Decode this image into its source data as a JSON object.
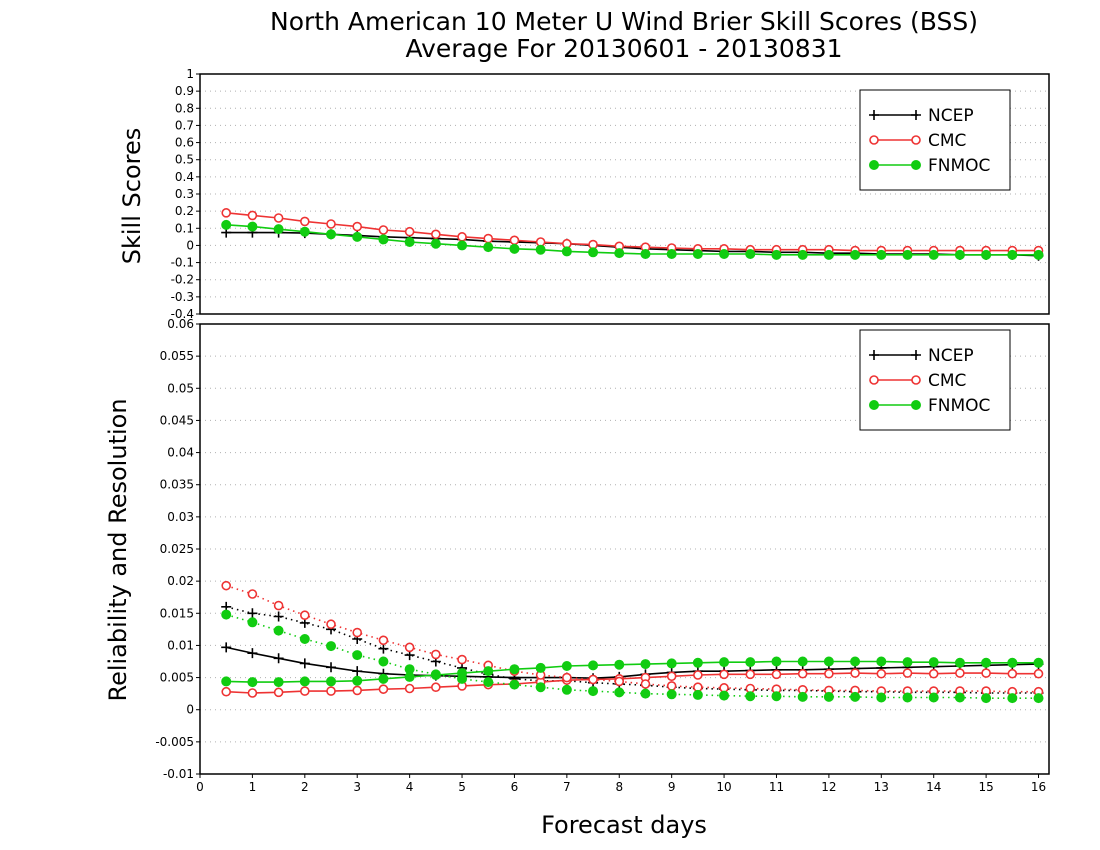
{
  "chart_data": [
    {
      "type": "line",
      "title": "North American 10 Meter U Wind Brier Skill Scores (BSS)",
      "subtitle": "Average For 20130601 - 20130831",
      "ylabel": "Skill Scores",
      "ylim": [
        -0.4,
        1
      ],
      "yticks": [
        "-0.4",
        "-0.3",
        "-0.2",
        "-0.1",
        "0",
        "0.1",
        "0.2",
        "0.3",
        "0.4",
        "0.5",
        "0.6",
        "0.7",
        "0.8",
        "0.9",
        "1"
      ],
      "xlim": [
        0,
        16.2
      ],
      "grid": true,
      "legend_position": "top-right",
      "x": [
        0.5,
        1,
        1.5,
        2,
        2.5,
        3,
        3.5,
        4,
        4.5,
        5,
        5.5,
        6,
        6.5,
        7,
        7.5,
        8,
        8.5,
        9,
        9.5,
        10,
        10.5,
        11,
        11.5,
        12,
        12.5,
        13,
        13.5,
        14,
        14.5,
        15,
        15.5,
        16
      ],
      "series": [
        {
          "name": "NCEP",
          "color": "#000000",
          "marker": "plus",
          "style": "solid",
          "values": [
            0.075,
            0.075,
            0.075,
            0.072,
            0.065,
            0.058,
            0.05,
            0.045,
            0.04,
            0.035,
            0.025,
            0.02,
            0.015,
            0.01,
            0.0,
            -0.01,
            -0.02,
            -0.025,
            -0.03,
            -0.035,
            -0.035,
            -0.04,
            -0.04,
            -0.045,
            -0.045,
            -0.05,
            -0.05,
            -0.05,
            -0.055,
            -0.055,
            -0.055,
            -0.06
          ]
        },
        {
          "name": "CMC",
          "color": "#ee3333",
          "marker": "open-circle",
          "style": "solid",
          "values": [
            0.19,
            0.175,
            0.16,
            0.14,
            0.125,
            0.11,
            0.09,
            0.08,
            0.065,
            0.05,
            0.04,
            0.03,
            0.02,
            0.01,
            0.005,
            -0.005,
            -0.01,
            -0.015,
            -0.02,
            -0.02,
            -0.025,
            -0.025,
            -0.025,
            -0.025,
            -0.03,
            -0.03,
            -0.03,
            -0.03,
            -0.03,
            -0.03,
            -0.03,
            -0.03
          ]
        },
        {
          "name": "FNMOC",
          "color": "#11cc11",
          "marker": "filled-circle",
          "style": "solid",
          "values": [
            0.12,
            0.11,
            0.095,
            0.08,
            0.065,
            0.05,
            0.035,
            0.02,
            0.01,
            0.0,
            -0.01,
            -0.02,
            -0.025,
            -0.035,
            -0.04,
            -0.045,
            -0.05,
            -0.05,
            -0.05,
            -0.05,
            -0.05,
            -0.055,
            -0.055,
            -0.055,
            -0.055,
            -0.055,
            -0.055,
            -0.055,
            -0.055,
            -0.055,
            -0.055,
            -0.055
          ]
        }
      ]
    },
    {
      "type": "line",
      "ylabel": "Reliability and Resolution",
      "xlabel": "Forecast days",
      "ylim": [
        -0.01,
        0.06
      ],
      "yticks": [
        "-0.01",
        "-0.005",
        "0",
        "0.005",
        "0.01",
        "0.015",
        "0.02",
        "0.025",
        "0.03",
        "0.035",
        "0.04",
        "0.045",
        "0.05",
        "0.055",
        "0.06"
      ],
      "xlim": [
        0,
        16.2
      ],
      "xticks": [
        "0",
        "1",
        "2",
        "3",
        "4",
        "5",
        "6",
        "7",
        "8",
        "9",
        "10",
        "11",
        "12",
        "13",
        "14",
        "15",
        "16"
      ],
      "grid": true,
      "legend_position": "top-right",
      "x": [
        0.5,
        1,
        1.5,
        2,
        2.5,
        3,
        3.5,
        4,
        4.5,
        5,
        5.5,
        6,
        6.5,
        7,
        7.5,
        8,
        8.5,
        9,
        9.5,
        10,
        10.5,
        11,
        11.5,
        12,
        12.5,
        13,
        13.5,
        14,
        14.5,
        15,
        15.5,
        16
      ],
      "series": [
        {
          "name": "NCEP",
          "color": "#000000",
          "marker": "plus",
          "style": "solid",
          "values": [
            0.0097,
            0.0088,
            0.008,
            0.0072,
            0.0066,
            0.006,
            0.0056,
            0.0054,
            0.0053,
            0.0052,
            0.0051,
            0.005,
            0.005,
            0.005,
            0.0049,
            0.0051,
            0.0055,
            0.0058,
            0.006,
            0.006,
            0.0061,
            0.0062,
            0.0062,
            0.0063,
            0.0064,
            0.0065,
            0.0066,
            0.0067,
            0.0068,
            0.0069,
            0.007,
            0.0071
          ]
        },
        {
          "name": "",
          "color": "#000000",
          "marker": "plus",
          "style": "dotted",
          "values": [
            0.016,
            0.015,
            0.0145,
            0.0135,
            0.0125,
            0.011,
            0.0095,
            0.0085,
            0.0075,
            0.0065,
            0.0055,
            0.0048,
            0.0045,
            0.0045,
            0.0042,
            0.004,
            0.0038,
            0.0035,
            0.0033,
            0.0032,
            0.0031,
            0.003,
            0.003,
            0.0029,
            0.0028,
            0.0028,
            0.0027,
            0.0027,
            0.0027,
            0.0026,
            0.0026,
            0.0026
          ]
        },
        {
          "name": "CMC",
          "color": "#ee3333",
          "marker": "open-circle",
          "style": "solid",
          "values": [
            0.0028,
            0.0026,
            0.0027,
            0.0029,
            0.0029,
            0.003,
            0.0032,
            0.0033,
            0.0035,
            0.0037,
            0.0039,
            0.004,
            0.0043,
            0.0046,
            0.0047,
            0.0048,
            0.005,
            0.0052,
            0.0054,
            0.0055,
            0.0055,
            0.0055,
            0.0056,
            0.0056,
            0.0057,
            0.0056,
            0.0057,
            0.0056,
            0.0057,
            0.0057,
            0.0056,
            0.0056
          ]
        },
        {
          "name": "",
          "color": "#ee3333",
          "marker": "open-circle",
          "style": "dotted",
          "values": [
            0.0193,
            0.018,
            0.0162,
            0.0147,
            0.0133,
            0.012,
            0.0108,
            0.0097,
            0.0086,
            0.0078,
            0.0069,
            0.006,
            0.0054,
            0.005,
            0.0047,
            0.0044,
            0.004,
            0.0037,
            0.0035,
            0.0034,
            0.0033,
            0.0032,
            0.0031,
            0.003,
            0.003,
            0.0029,
            0.0029,
            0.0029,
            0.0029,
            0.0029,
            0.0028,
            0.0028
          ]
        },
        {
          "name": "FNMOC",
          "color": "#11cc11",
          "marker": "filled-circle",
          "style": "solid",
          "values": [
            0.0044,
            0.0043,
            0.0043,
            0.0044,
            0.0044,
            0.0045,
            0.0048,
            0.0051,
            0.0054,
            0.0057,
            0.006,
            0.0063,
            0.0065,
            0.0068,
            0.0069,
            0.007,
            0.0071,
            0.0072,
            0.0073,
            0.0074,
            0.0074,
            0.0075,
            0.0075,
            0.0075,
            0.0075,
            0.0075,
            0.0074,
            0.0074,
            0.0073,
            0.0073,
            0.0073,
            0.0073
          ]
        },
        {
          "name": "",
          "color": "#11cc11",
          "marker": "filled-circle",
          "style": "dotted",
          "values": [
            0.0148,
            0.0136,
            0.0123,
            0.011,
            0.0099,
            0.0085,
            0.0075,
            0.0063,
            0.0055,
            0.0048,
            0.0043,
            0.0039,
            0.0035,
            0.0031,
            0.0029,
            0.0027,
            0.0025,
            0.0024,
            0.0023,
            0.0022,
            0.0021,
            0.0021,
            0.002,
            0.002,
            0.002,
            0.0019,
            0.0019,
            0.0019,
            0.0019,
            0.0018,
            0.0018,
            0.0018
          ]
        }
      ]
    }
  ]
}
